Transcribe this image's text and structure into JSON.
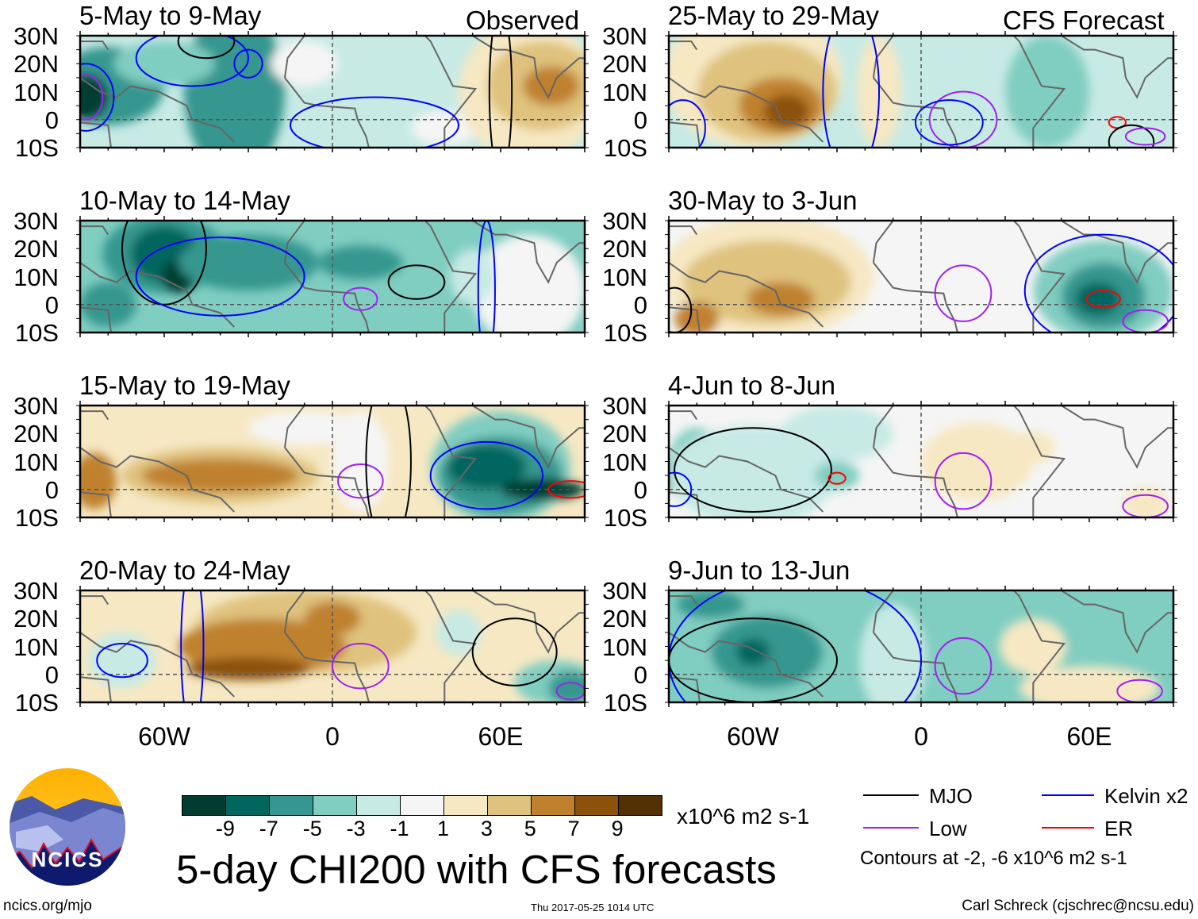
{
  "headers": {
    "left": "Observed",
    "right": "CFS Forecast"
  },
  "panels_left": [
    {
      "title": "5-May to 9-May"
    },
    {
      "title": "10-May to 14-May"
    },
    {
      "title": "15-May to 19-May"
    },
    {
      "title": "20-May to 24-May"
    }
  ],
  "panels_right": [
    {
      "title": "25-May to 29-May"
    },
    {
      "title": "30-May to 3-Jun"
    },
    {
      "title": "4-Jun to 8-Jun"
    },
    {
      "title": "9-Jun to 13-Jun"
    }
  ],
  "lat_labels": [
    "30N",
    "20N",
    "10N",
    "0",
    "10S"
  ],
  "lon_labels": [
    "60W",
    "0",
    "60E"
  ],
  "colorbar": {
    "colors": [
      "#003c30",
      "#01665e",
      "#35978f",
      "#80cdc1",
      "#c7eae5",
      "#f5f5f5",
      "#f6e8c3",
      "#dfc27d",
      "#bf812d",
      "#8c510a",
      "#543005"
    ],
    "labels": [
      "-9",
      "-7",
      "-5",
      "-3",
      "-1",
      "1",
      "3",
      "5",
      "7",
      "9"
    ],
    "units": "x10^6 m2 s-1"
  },
  "title": "5-day CHI200 with CFS forecasts",
  "legend": {
    "items": [
      {
        "label": "MJO",
        "color": "#000000"
      },
      {
        "label": "Kelvin x2",
        "color": "#0000ff"
      },
      {
        "label": "Low",
        "color": "#a020f0"
      },
      {
        "label": "ER",
        "color": "#ff0000"
      }
    ],
    "contours_note": "Contours at -2, -6 x10^6 m2 s-1"
  },
  "logo": {
    "text": "NCICS"
  },
  "footer": {
    "url": "ncics.org/mjo",
    "timestamp": "Thu 2017-05-25 1014 UTC",
    "credit": "Carl Schreck (cjschrec@ncsu.edu)"
  }
}
